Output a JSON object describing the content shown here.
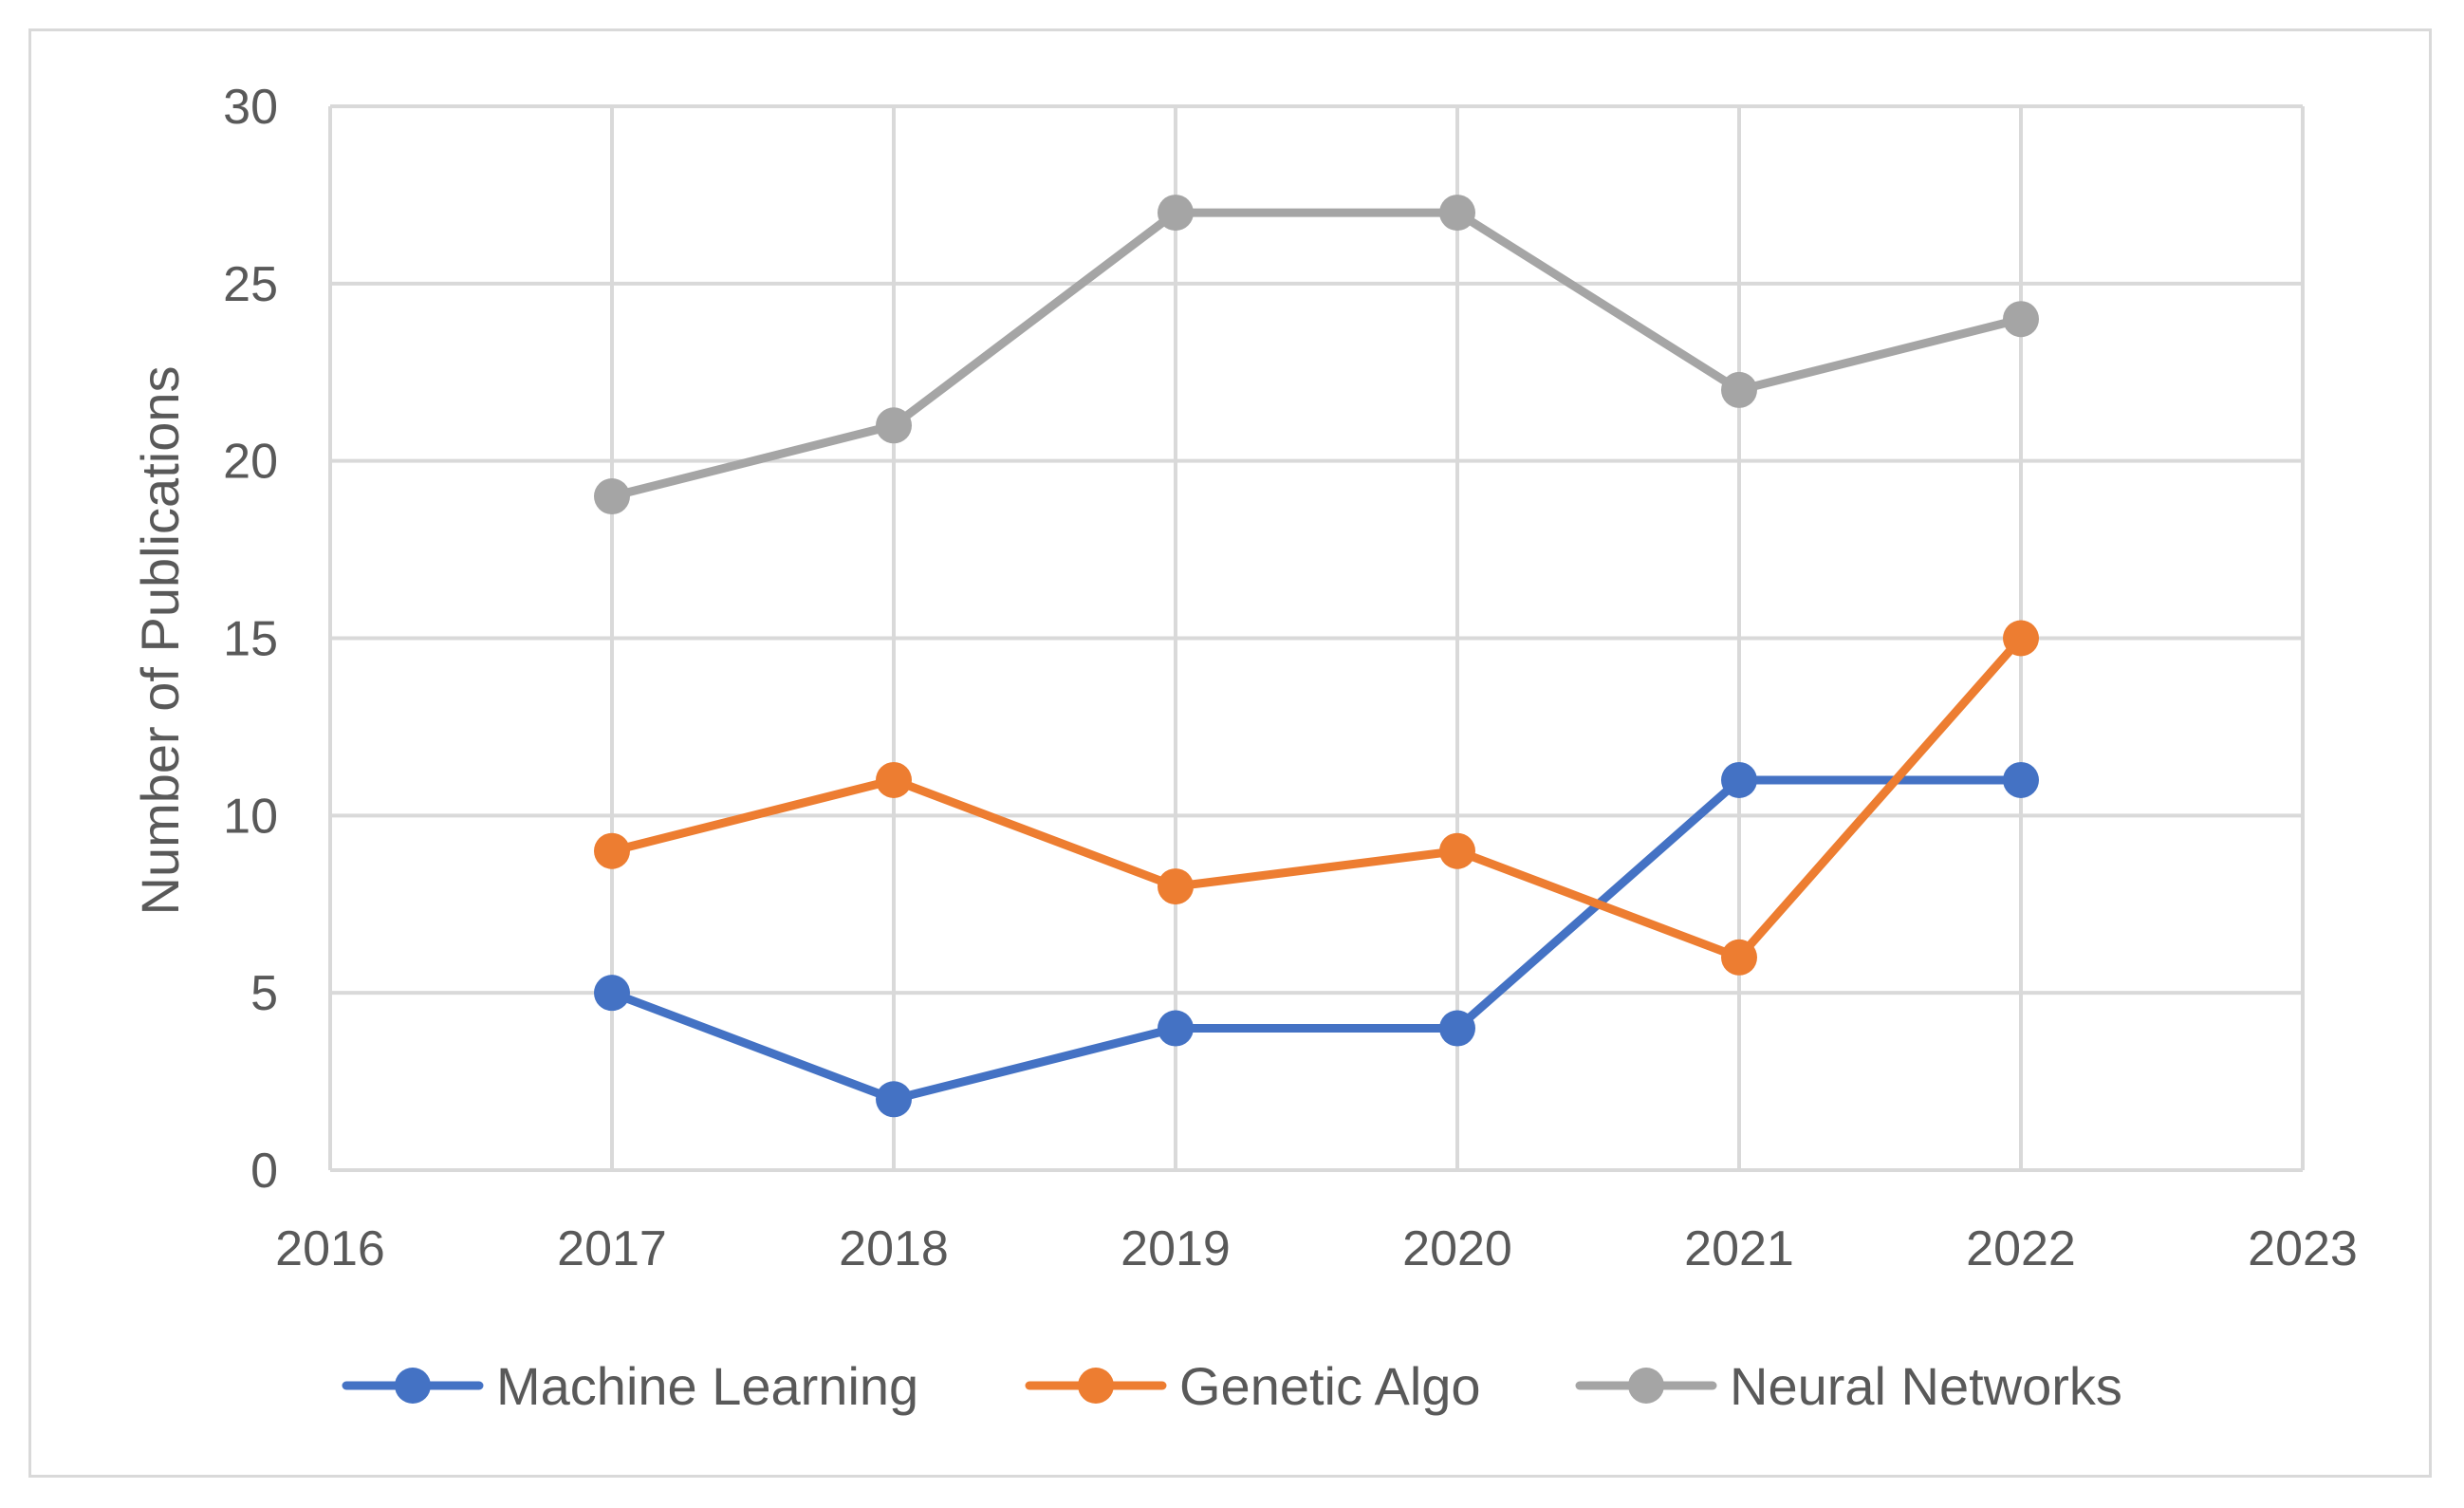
{
  "chart_data": {
    "type": "line",
    "title": "",
    "xlabel": "",
    "ylabel": "Number of Publications",
    "xlim": [
      2016,
      2023
    ],
    "ylim": [
      0,
      30
    ],
    "x_ticks": [
      "2016",
      "2017",
      "2018",
      "2019",
      "2020",
      "2021",
      "2022",
      "2023"
    ],
    "y_ticks": [
      "0",
      "5",
      "10",
      "15",
      "20",
      "25",
      "30"
    ],
    "grid": true,
    "legend_position": "bottom",
    "x": [
      2017,
      2018,
      2019,
      2020,
      2021,
      2022
    ],
    "series": [
      {
        "name": "Machine Learning",
        "color": "#4472c4",
        "values": [
          5,
          2,
          4,
          4,
          11,
          11
        ]
      },
      {
        "name": "Genetic Algo",
        "color": "#ed7d31",
        "values": [
          9,
          11,
          8,
          9,
          6,
          15
        ]
      },
      {
        "name": "Neural Networks",
        "color": "#a5a5a5",
        "values": [
          19,
          21,
          27,
          27,
          22,
          24
        ]
      }
    ]
  }
}
